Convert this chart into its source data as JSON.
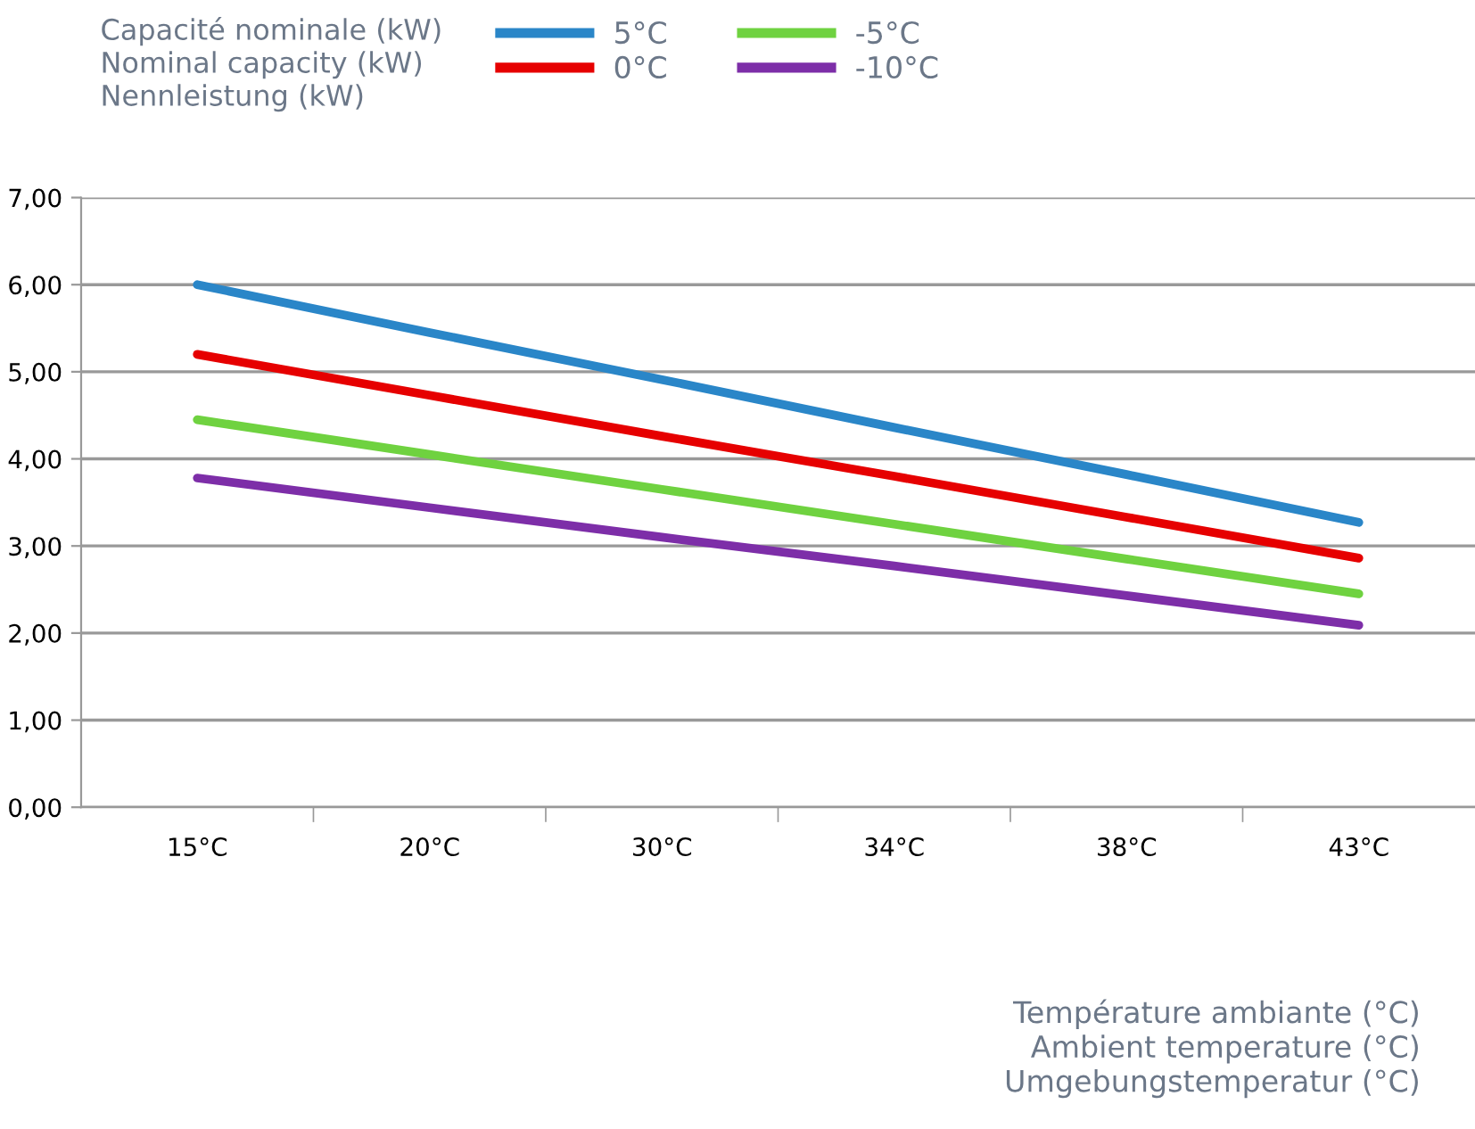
{
  "chart_data": {
    "type": "line",
    "ylabel": "Capacité nominale (kW)\nNominal capacity (kW)\nNennleistung (kW)",
    "xlabel": "Température ambiante (°C)\nAmbient temperature (°C)\nUmgebungstemperatur (°C)",
    "categories": [
      "15°C",
      "20°C",
      "30°C",
      "34°C",
      "38°C",
      "43°C"
    ],
    "series": [
      {
        "name": "5°C",
        "color": "#2a86c8",
        "values": [
          6.0,
          5.45,
          4.91,
          4.36,
          3.82,
          3.27
        ]
      },
      {
        "name": "0°C",
        "color": "#e60000",
        "values": [
          5.2,
          4.73,
          4.26,
          3.8,
          3.33,
          2.86
        ]
      },
      {
        "name": "-5°C",
        "color": "#6fd240",
        "values": [
          4.45,
          4.05,
          3.65,
          3.25,
          2.85,
          2.45
        ]
      },
      {
        "name": "-10°C",
        "color": "#7d2ea8",
        "values": [
          3.78,
          3.44,
          3.1,
          2.77,
          2.43,
          2.09
        ]
      }
    ],
    "ylim": [
      0,
      7
    ],
    "yticks": [
      {
        "value": 0,
        "label": "0,00"
      },
      {
        "value": 1,
        "label": "1,00"
      },
      {
        "value": 2,
        "label": "2,00"
      },
      {
        "value": 3,
        "label": "3,00"
      },
      {
        "value": 4,
        "label": "4,00"
      },
      {
        "value": 5,
        "label": "5,00"
      },
      {
        "value": 6,
        "label": "6,00"
      },
      {
        "value": 7,
        "label": "7,00"
      }
    ],
    "grid": "y",
    "legend": "top",
    "marker": "none",
    "line_style": "solid"
  }
}
